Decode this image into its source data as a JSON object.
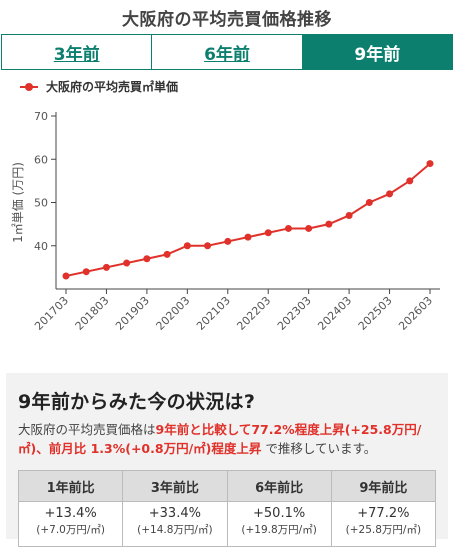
{
  "header": {
    "title": "大阪府の平均売買価格推移"
  },
  "tabs": [
    {
      "label": "3年前"
    },
    {
      "label": "6年前"
    },
    {
      "label": "9年前"
    }
  ],
  "chart_data": {
    "type": "line",
    "legend": "大阪府の平均売買㎡単価",
    "legend_position": "top-left",
    "ylabel": "1㎡単価 (万円)",
    "xlabel": "",
    "ylim": [
      30,
      70
    ],
    "yticks": [
      40,
      50,
      60,
      70
    ],
    "grid": false,
    "color": "#e0312a",
    "x": [
      "201703",
      "201709",
      "201803",
      "201809",
      "201903",
      "201909",
      "202003",
      "202009",
      "202103",
      "202109",
      "202203",
      "202209",
      "202303",
      "202309",
      "202403",
      "202409",
      "202503",
      "202509",
      "202603"
    ],
    "xtick_labels": [
      "201703",
      "201803",
      "201903",
      "202003",
      "202103",
      "202203",
      "202303",
      "202403",
      "202503",
      "202603"
    ],
    "series": [
      {
        "name": "大阪府の平均売買㎡単価",
        "values": [
          33,
          34,
          35,
          36,
          37,
          38,
          40,
          40,
          41,
          42,
          43,
          44,
          44,
          45,
          47,
          50,
          52,
          55,
          59
        ]
      }
    ]
  },
  "summary": {
    "heading": "9年前からみた今の状況は?",
    "text_1": "大阪府の平均売買価格は",
    "highlight_1": "9年前と比較して77.2%程度上昇(+25.8万円/㎡)、前月比 1.3%(+0.8万円/㎡)程度上昇",
    "text_2": " で推移しています。"
  },
  "comparison": {
    "headers": [
      "1年前比",
      "3年前比",
      "6年前比",
      "9年前比"
    ],
    "values": [
      {
        "pct": "+13.4%",
        "amount": "(+7.0万円/㎡)"
      },
      {
        "pct": "+33.4%",
        "amount": "(+14.8万円/㎡)"
      },
      {
        "pct": "+50.1%",
        "amount": "(+19.8万円/㎡)"
      },
      {
        "pct": "+77.2%",
        "amount": "(+25.8万円/㎡)"
      }
    ]
  }
}
